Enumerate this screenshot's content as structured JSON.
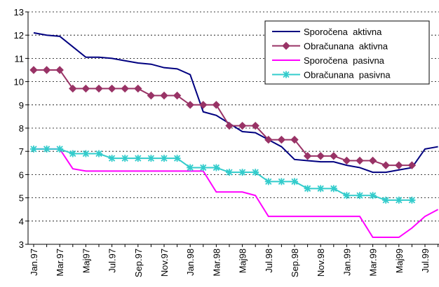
{
  "chart_data": {
    "type": "line",
    "categories": [
      "Jan.97",
      null,
      "Mar.97",
      null,
      "Maj97",
      null,
      "Jul.97",
      null,
      "Sep.97",
      null,
      "Nov.97",
      null,
      "Jan.98",
      null,
      "Mar.98",
      null,
      "Maj98",
      null,
      "Jul.98",
      null,
      "Sep.98",
      null,
      "Nov.98",
      null,
      "Jan.99",
      null,
      "Mar.99",
      null,
      "Maj99",
      null,
      "Jul.99",
      null
    ],
    "series": [
      {
        "name": "Sporočena  aktivna",
        "color": "#000080",
        "marker": "none",
        "values": [
          12.1,
          12.0,
          11.95,
          11.5,
          11.05,
          11.05,
          11.0,
          10.9,
          10.8,
          10.75,
          10.6,
          10.55,
          10.3,
          8.7,
          8.55,
          8.2,
          7.85,
          7.8,
          7.5,
          7.2,
          6.65,
          6.6,
          6.55,
          6.55,
          6.4,
          6.3,
          6.1,
          6.1,
          6.2,
          6.3,
          7.1,
          7.2
        ]
      },
      {
        "name": "Obračunana  aktivna",
        "color": "#993366",
        "marker": "diamond",
        "values": [
          10.5,
          10.5,
          10.5,
          9.7,
          9.7,
          9.7,
          9.7,
          9.7,
          9.7,
          9.4,
          9.4,
          9.4,
          9.0,
          9.0,
          9.0,
          8.1,
          8.1,
          8.1,
          7.5,
          7.5,
          7.5,
          6.8,
          6.8,
          6.8,
          6.6,
          6.6,
          6.6,
          6.4,
          6.4,
          6.4,
          null,
          null
        ]
      },
      {
        "name": "Sporočena  pasivna",
        "color": "#ff00ff",
        "marker": "none",
        "values": [
          7.1,
          7.1,
          7.1,
          6.25,
          6.15,
          6.15,
          6.15,
          6.15,
          6.15,
          6.15,
          6.15,
          6.15,
          6.15,
          6.15,
          5.25,
          5.25,
          5.25,
          5.1,
          4.2,
          4.2,
          4.2,
          4.2,
          4.2,
          4.2,
          4.2,
          4.2,
          3.3,
          3.3,
          3.3,
          3.7,
          4.2,
          4.5
        ]
      },
      {
        "name": "Obračunana  pasivna",
        "color": "#33cccc",
        "marker": "star",
        "values": [
          7.1,
          7.1,
          7.1,
          6.9,
          6.9,
          6.9,
          6.7,
          6.7,
          6.7,
          6.7,
          6.7,
          6.7,
          6.3,
          6.3,
          6.3,
          6.1,
          6.1,
          6.1,
          5.7,
          5.7,
          5.7,
          5.4,
          5.4,
          5.4,
          5.1,
          5.1,
          5.1,
          4.9,
          4.9,
          4.9,
          null,
          null
        ]
      }
    ],
    "ylim": [
      3,
      13
    ],
    "yticks": [
      3,
      4,
      5,
      6,
      7,
      8,
      9,
      10,
      11,
      12,
      13
    ],
    "grid": true,
    "legend": "upper right"
  }
}
